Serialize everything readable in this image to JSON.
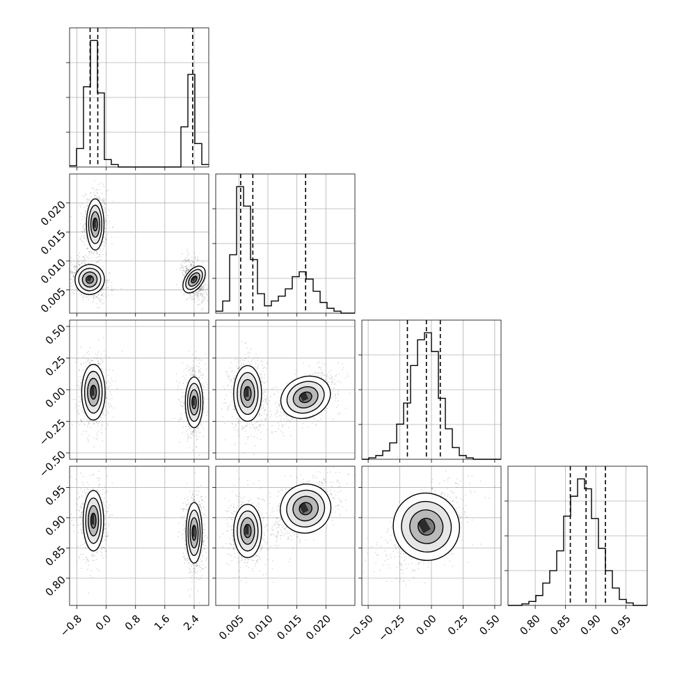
{
  "chart_data": {
    "type": "corner",
    "parameters": [
      {
        "name": "",
        "xlim": [
          -1.0,
          2.8
        ],
        "ticks": [
          -0.8,
          0.0,
          0.8,
          1.6,
          2.4
        ],
        "tick_labels": [
          "−0.8",
          "0.0",
          "0.8",
          "1.6",
          "2.4"
        ]
      },
      {
        "name": "",
        "xlim": [
          0.001,
          0.025
        ],
        "ticks": [
          0.005,
          0.01,
          0.015,
          0.02
        ],
        "tick_labels": [
          "0.005",
          "0.010",
          "0.015",
          "0.020"
        ]
      },
      {
        "name": "",
        "xlim": [
          -0.55,
          0.55
        ],
        "ticks": [
          -0.5,
          -0.25,
          0.0,
          0.25,
          0.5
        ],
        "tick_labels": [
          "−0.50",
          "−0.25",
          "0.00",
          "0.25",
          "0.50"
        ]
      },
      {
        "name": "",
        "xlim": [
          0.755,
          0.985
        ],
        "ticks": [
          0.8,
          0.85,
          0.9,
          0.95
        ],
        "tick_labels": [
          "0.80",
          "0.85",
          "0.90",
          "0.95"
        ]
      }
    ],
    "histograms": [
      {
        "param": 0,
        "bin_edges": [
          -1.0,
          -0.81,
          -0.62,
          -0.43,
          -0.24,
          -0.05,
          0.14,
          0.33,
          0.52,
          0.71,
          0.9,
          1.09,
          1.28,
          1.47,
          1.66,
          1.85,
          2.04,
          2.23,
          2.42,
          2.61,
          2.8
        ],
        "counts": [
          2,
          30,
          130,
          205,
          120,
          12,
          4,
          0,
          0,
          0,
          0,
          0,
          0,
          0,
          0,
          0,
          65,
          150,
          38,
          4
        ],
        "quantile_lines": [
          -0.44,
          -0.23,
          2.36
        ]
      },
      {
        "param": 1,
        "bin_edges": [
          0.001,
          0.0022,
          0.0034,
          0.0046,
          0.0058,
          0.007,
          0.0082,
          0.0094,
          0.0106,
          0.0118,
          0.013,
          0.0142,
          0.0154,
          0.0166,
          0.0178,
          0.019,
          0.0202,
          0.0214,
          0.0226,
          0.0238,
          0.025
        ],
        "counts": [
          4,
          25,
          120,
          260,
          220,
          110,
          40,
          15,
          25,
          35,
          50,
          75,
          85,
          70,
          45,
          22,
          10,
          4,
          0,
          0
        ],
        "quantile_lines": [
          0.0053,
          0.0074,
          0.0165
        ]
      },
      {
        "param": 2,
        "bin_edges": [
          -0.55,
          -0.495,
          -0.44,
          -0.385,
          -0.33,
          -0.275,
          -0.22,
          -0.165,
          -0.11,
          -0.055,
          0.0,
          0.055,
          0.11,
          0.165,
          0.22,
          0.275,
          0.33,
          0.385,
          0.44,
          0.495,
          0.55
        ],
        "counts": [
          0,
          3,
          8,
          18,
          35,
          75,
          120,
          200,
          255,
          270,
          230,
          130,
          65,
          25,
          8,
          3,
          0,
          0,
          0,
          0
        ],
        "quantile_lines": [
          -0.19,
          -0.04,
          0.07
        ]
      },
      {
        "param": 3,
        "bin_edges": [
          0.755,
          0.7665,
          0.778,
          0.7895,
          0.801,
          0.8125,
          0.824,
          0.8355,
          0.847,
          0.8585,
          0.87,
          0.8815,
          0.893,
          0.9045,
          0.916,
          0.9275,
          0.939,
          0.9505,
          0.962,
          0.9735,
          0.985
        ],
        "counts": [
          0,
          0,
          3,
          8,
          20,
          45,
          70,
          110,
          180,
          220,
          255,
          235,
          175,
          115,
          70,
          35,
          12,
          5,
          0,
          0
        ],
        "quantile_lines": [
          0.858,
          0.884,
          0.916
        ]
      }
    ],
    "scatter_panels": [
      {
        "x_param": 0,
        "y_param": 1,
        "modes": [
          {
            "cx": -0.3,
            "cy": 0.0163,
            "sx": 0.12,
            "sy": 0.0022,
            "rho": 0.0
          },
          {
            "cx": -0.45,
            "cy": 0.0068,
            "sx": 0.2,
            "sy": 0.0013,
            "rho": -0.4
          },
          {
            "cx": 2.4,
            "cy": 0.0068,
            "sx": 0.12,
            "sy": 0.0013,
            "rho": -0.4
          }
        ]
      },
      {
        "x_param": 0,
        "y_param": 2,
        "modes": [
          {
            "cx": -0.35,
            "cy": -0.02,
            "sx": 0.16,
            "sy": 0.11,
            "rho": 0.0
          },
          {
            "cx": 2.4,
            "cy": -0.1,
            "sx": 0.12,
            "sy": 0.1,
            "rho": 0.0
          }
        ]
      },
      {
        "x_param": 1,
        "y_param": 2,
        "modes": [
          {
            "cx": 0.0065,
            "cy": -0.03,
            "sx": 0.0012,
            "sy": 0.11,
            "rho": 0.0
          },
          {
            "cx": 0.0165,
            "cy": -0.06,
            "sx": 0.0022,
            "sy": 0.08,
            "rho": 0.55
          }
        ]
      },
      {
        "x_param": 0,
        "y_param": 3,
        "modes": [
          {
            "cx": -0.35,
            "cy": 0.895,
            "sx": 0.14,
            "sy": 0.025,
            "rho": 0.0
          },
          {
            "cx": 2.4,
            "cy": 0.875,
            "sx": 0.11,
            "sy": 0.025,
            "rho": 0.0
          }
        ]
      },
      {
        "x_param": 1,
        "y_param": 3,
        "modes": [
          {
            "cx": 0.0065,
            "cy": 0.878,
            "sx": 0.0012,
            "sy": 0.022,
            "rho": 0.0
          },
          {
            "cx": 0.0165,
            "cy": 0.915,
            "sx": 0.0022,
            "sy": 0.02,
            "rho": 0.55
          }
        ]
      },
      {
        "x_param": 2,
        "y_param": 3,
        "modes": [
          {
            "cx": -0.04,
            "cy": 0.885,
            "sx": 0.13,
            "sy": 0.028,
            "rho": 0.55
          }
        ]
      }
    ],
    "grid": true,
    "xlabel": "",
    "ylabel": "",
    "title": ""
  }
}
